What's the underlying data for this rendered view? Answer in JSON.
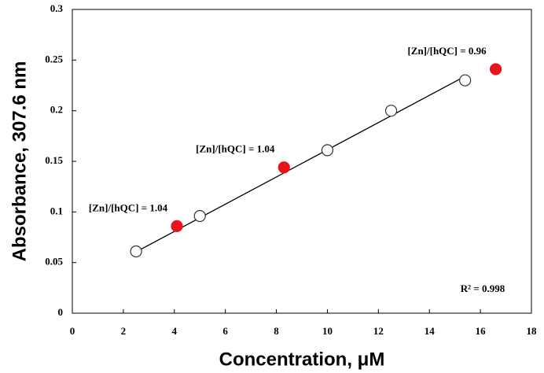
{
  "chart_data": {
    "type": "scatter",
    "x_label": "Concentration, μM",
    "y_label": "Absorbance, 307.6 nm",
    "xlim": [
      0,
      18
    ],
    "xticks": [
      0,
      2,
      4,
      6,
      8,
      10,
      12,
      14,
      16,
      18
    ],
    "ylim": [
      0,
      0.3
    ],
    "yticks": [
      0,
      0.05,
      0.1,
      0.15,
      0.2,
      0.25,
      0.3
    ],
    "series": [
      {
        "marker": "open",
        "color": "#000000",
        "x": [
          2.5,
          5,
          10,
          12.5,
          15.4
        ],
        "values": [
          0.061,
          0.096,
          0.161,
          0.2,
          0.23
        ]
      },
      {
        "marker": "filled",
        "color": "#e8141b",
        "x": [
          4.1,
          8.3,
          16.6
        ],
        "values": [
          0.086,
          0.144,
          0.241
        ],
        "annotations": [
          "[Zn]/[hQC] = 1.04",
          "[Zn]/[hQC] = 1.04",
          "[Zn]/[hQC] = 0.96"
        ]
      },
      {
        "marker": "line",
        "color": "#000000",
        "x": [
          2.5,
          15.4
        ],
        "values": [
          0.0606,
          0.234
        ]
      }
    ],
    "r_squared_label": "R² = 0.998"
  }
}
